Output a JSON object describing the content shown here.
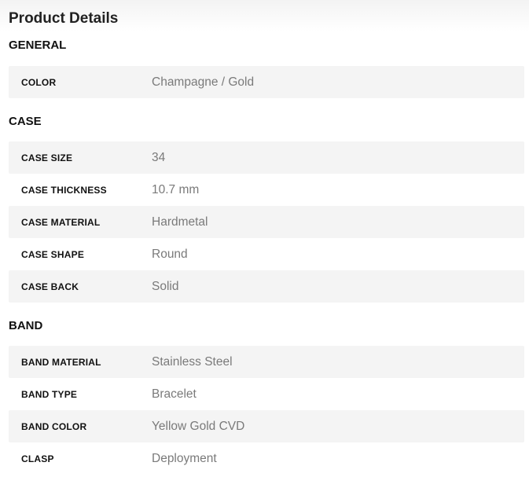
{
  "title": "Product Details",
  "sections": [
    {
      "heading": "GENERAL",
      "rows": [
        {
          "label": "COLOR",
          "value": "Champagne / Gold"
        }
      ]
    },
    {
      "heading": "CASE",
      "rows": [
        {
          "label": "CASE SIZE",
          "value": "34"
        },
        {
          "label": "CASE THICKNESS",
          "value": "10.7 mm"
        },
        {
          "label": "CASE MATERIAL",
          "value": "Hardmetal"
        },
        {
          "label": "CASE SHAPE",
          "value": "Round"
        },
        {
          "label": "CASE BACK",
          "value": "Solid"
        }
      ]
    },
    {
      "heading": "BAND",
      "rows": [
        {
          "label": "BAND MATERIAL",
          "value": "Stainless Steel"
        },
        {
          "label": "BAND TYPE",
          "value": "Bracelet"
        },
        {
          "label": "BAND COLOR",
          "value": "Yellow Gold CVD"
        },
        {
          "label": "CLASP",
          "value": "Deployment"
        }
      ]
    }
  ]
}
